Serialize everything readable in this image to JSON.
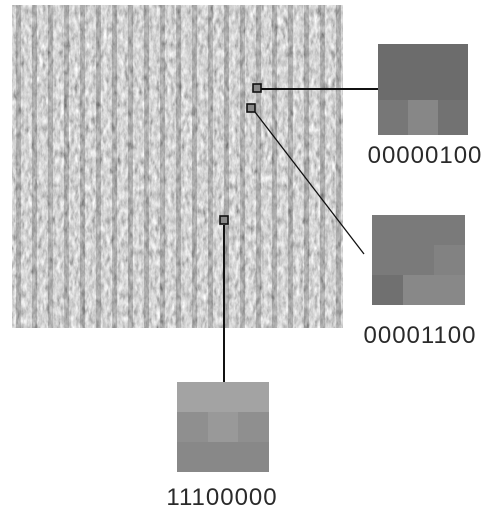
{
  "patches": [
    {
      "label": "00000100"
    },
    {
      "label": "00001100"
    },
    {
      "label": "11100000"
    }
  ]
}
